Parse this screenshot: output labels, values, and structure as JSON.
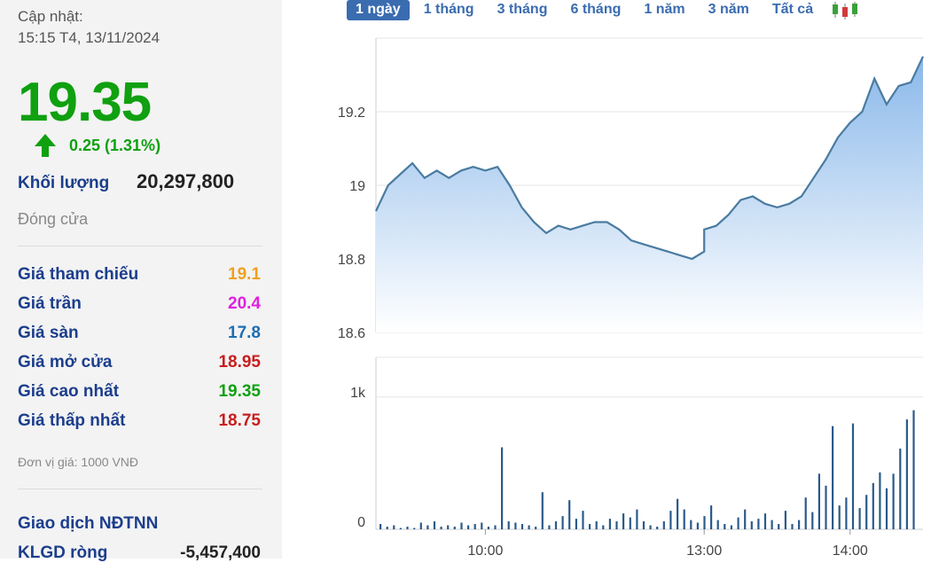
{
  "update": {
    "label": "Cập nhật:",
    "time": "15:15 T4, 13/11/2024"
  },
  "price": "19.35",
  "change": "0.25 (1.31%)",
  "volume": {
    "label": "Khối lượng",
    "value": "20,297,800"
  },
  "close_label": "Đóng cửa",
  "stats": [
    {
      "label": "Giá tham chiếu",
      "value": "19.1",
      "color": "#f0a020"
    },
    {
      "label": "Giá trần",
      "value": "20.4",
      "color": "#e020e0"
    },
    {
      "label": "Giá sàn",
      "value": "17.8",
      "color": "#1c6eb4"
    },
    {
      "label": "Giá mở cửa",
      "value": "18.95",
      "color": "#c81e1e"
    },
    {
      "label": "Giá cao nhất",
      "value": "19.35",
      "color": "#10a010"
    },
    {
      "label": "Giá thấp nhất",
      "value": "18.75",
      "color": "#c81e1e"
    }
  ],
  "unit": "Đơn vị giá: 1000 VNĐ",
  "foreign": {
    "title": "Giao dịch NĐTNN",
    "net_label": "KLGD ròng",
    "net_value": "-5,457,400"
  },
  "range_tabs": [
    "1 ngày",
    "1 tháng",
    "3 tháng",
    "6 tháng",
    "1 năm",
    "3 năm",
    "Tất cả"
  ],
  "active_tab": 0,
  "colors": {
    "up": "#10a010",
    "line": "#4a7ba0",
    "area_top": "#8ab8ea",
    "area_bottom": "#ffffff",
    "volume": "#2b5a8a"
  },
  "chart_data": [
    {
      "type": "area",
      "x_ticks": [
        "10:00",
        "13:00",
        "14:00"
      ],
      "y_ticks": [
        "18.6",
        "18.8",
        "19",
        "19.2"
      ],
      "ylim": [
        18.6,
        19.4
      ],
      "x_range": [
        "09:15",
        "14:30"
      ],
      "x": [
        "09:15",
        "09:20",
        "09:25",
        "09:30",
        "09:35",
        "09:40",
        "09:45",
        "09:50",
        "09:55",
        "10:00",
        "10:05",
        "10:10",
        "10:15",
        "10:20",
        "10:25",
        "10:30",
        "10:35",
        "10:40",
        "10:45",
        "10:50",
        "10:55",
        "11:00",
        "11:05",
        "11:10",
        "11:15",
        "11:20",
        "11:25",
        "11:30",
        "13:00",
        "13:05",
        "13:10",
        "13:15",
        "13:20",
        "13:25",
        "13:30",
        "13:35",
        "13:40",
        "13:45",
        "13:50",
        "13:55",
        "14:00",
        "14:05",
        "14:10",
        "14:15",
        "14:20",
        "14:25",
        "14:30"
      ],
      "values": [
        18.93,
        19.0,
        19.03,
        19.06,
        19.02,
        19.04,
        19.02,
        19.04,
        19.05,
        19.04,
        19.05,
        19.0,
        18.94,
        18.9,
        18.87,
        18.89,
        18.88,
        18.89,
        18.9,
        18.9,
        18.88,
        18.85,
        18.84,
        18.83,
        18.82,
        18.81,
        18.8,
        18.82,
        18.88,
        18.89,
        18.92,
        18.96,
        18.97,
        18.95,
        18.94,
        18.95,
        18.97,
        19.02,
        19.07,
        19.13,
        19.17,
        19.2,
        19.29,
        19.22,
        19.27,
        19.28,
        19.35
      ]
    },
    {
      "type": "bar",
      "y_ticks": [
        "0",
        "1k"
      ],
      "ylim": [
        0,
        1300
      ],
      "x_range": [
        "09:15",
        "14:30"
      ],
      "values": [
        40,
        20,
        30,
        10,
        20,
        10,
        50,
        30,
        60,
        20,
        30,
        20,
        50,
        30,
        40,
        50,
        20,
        30,
        620,
        60,
        50,
        40,
        30,
        20,
        280,
        30,
        60,
        100,
        220,
        80,
        140,
        40,
        60,
        30,
        80,
        60,
        120,
        90,
        150,
        60,
        30,
        20,
        60,
        140,
        230,
        150,
        70,
        50,
        100,
        180,
        70,
        40,
        30,
        90,
        150,
        60,
        80,
        120,
        70,
        40,
        140,
        40,
        70,
        240,
        130,
        420,
        330,
        780,
        180,
        240,
        800,
        160,
        260,
        350,
        430,
        310,
        420,
        610,
        830,
        900
      ]
    }
  ]
}
